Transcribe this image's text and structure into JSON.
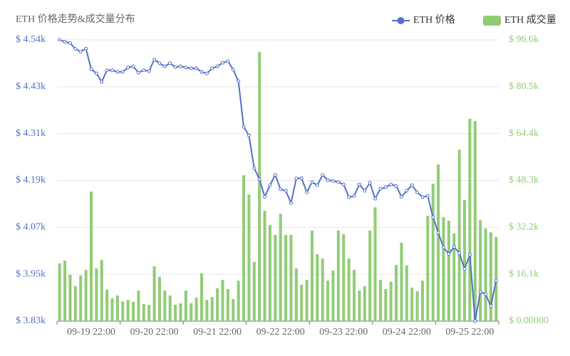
{
  "chart_data": {
    "type": "bar-line",
    "title": "ETH 价格走势&成交量分布",
    "categories": [
      null,
      null,
      null,
      null,
      null,
      null,
      "09-19 22:00",
      null,
      null,
      null,
      null,
      null,
      null,
      null,
      null,
      null,
      null,
      null,
      "09-20 22:00",
      null,
      null,
      null,
      null,
      null,
      null,
      null,
      null,
      null,
      null,
      null,
      "09-21 22:00",
      null,
      null,
      null,
      null,
      null,
      null,
      null,
      null,
      null,
      null,
      null,
      "09-22 22:00",
      null,
      null,
      null,
      null,
      null,
      null,
      null,
      null,
      null,
      null,
      null,
      "09-23 22:00",
      null,
      null,
      null,
      null,
      null,
      null,
      null,
      null,
      null,
      null,
      null,
      "09-24 22:00",
      null,
      null,
      null,
      null,
      null,
      null,
      null,
      null,
      null,
      null,
      null,
      "09-25 22:00",
      null,
      null,
      null,
      null,
      null
    ],
    "series": [
      {
        "name": "ETH 价格",
        "type": "line",
        "color": "#5470c6",
        "axis": "y",
        "values": [
          4545,
          4540,
          4537,
          4522,
          4515,
          4523,
          4471,
          4460,
          4439,
          4468,
          4468,
          4464,
          4464,
          4475,
          4478,
          4462,
          4468,
          4466,
          4495,
          4486,
          4478,
          4486,
          4476,
          4478,
          4475,
          4473,
          4473,
          4464,
          4460,
          4473,
          4478,
          4487,
          4491,
          4470,
          4440,
          4325,
          4303,
          4220,
          4192,
          4148,
          4177,
          4203,
          4167,
          4163,
          4132,
          4194,
          4195,
          4159,
          4185,
          4177,
          4203,
          4190,
          4188,
          4185,
          4179,
          4147,
          4150,
          4179,
          4163,
          4183,
          4143,
          4168,
          4172,
          4179,
          4175,
          4148,
          4163,
          4177,
          4159,
          4147,
          4150,
          4096,
          4057,
          4019,
          4003,
          4021,
          4005,
          3965,
          4001,
          3833,
          3907,
          3901,
          3871,
          3936
        ]
      },
      {
        "name": "ETH 成交量",
        "type": "bar",
        "color": "#91cc75",
        "axis": "y2",
        "values": [
          19800,
          20800,
          15900,
          12000,
          15700,
          17600,
          44500,
          18100,
          21000,
          10800,
          7800,
          8800,
          6800,
          7300,
          6600,
          10500,
          5900,
          5600,
          18800,
          15200,
          10500,
          8800,
          5600,
          6100,
          10500,
          6100,
          8100,
          16400,
          7300,
          8300,
          11300,
          14200,
          11000,
          7600,
          13900,
          50100,
          43500,
          20300,
          92500,
          37900,
          33000,
          29600,
          36900,
          29600,
          29600,
          18100,
          12500,
          14200,
          31100,
          23000,
          21500,
          13900,
          17400,
          31100,
          29800,
          21500,
          17600,
          10500,
          12000,
          31100,
          39100,
          14200,
          11000,
          13500,
          19300,
          26900,
          19100,
          11500,
          10300,
          13900,
          36200,
          47200,
          53800,
          35700,
          34500,
          30100,
          58900,
          41600,
          69500,
          68700,
          34700,
          31800,
          30500,
          28900
        ]
      }
    ],
    "ylim": [
      3833,
      4545
    ],
    "yticks": [
      {
        "value": 3833,
        "label": "$ 3.83k"
      },
      {
        "value": 3951.7,
        "label": "$ 3.95k"
      },
      {
        "value": 4070.3,
        "label": "$ 4.07k"
      },
      {
        "value": 4189,
        "label": "$ 4.19k"
      },
      {
        "value": 4307.7,
        "label": "$ 4.31k"
      },
      {
        "value": 4426.3,
        "label": "$ 4.43k"
      },
      {
        "value": 4545,
        "label": "$ 4.54k"
      }
    ],
    "y2lim": [
      0,
      96600
    ],
    "y2ticks": [
      {
        "value": 0,
        "label": "$ 0.00000"
      },
      {
        "value": 16100,
        "label": "$ 16.1k"
      },
      {
        "value": 32200,
        "label": "$ 32.2k"
      },
      {
        "value": 48300,
        "label": "$ 48.3k"
      },
      {
        "value": 64400,
        "label": "$ 64.4k"
      },
      {
        "value": 80500,
        "label": "$ 80.5k"
      },
      {
        "value": 96600,
        "label": "$ 96.6k"
      }
    ],
    "grid": true,
    "legend": "top-right"
  }
}
